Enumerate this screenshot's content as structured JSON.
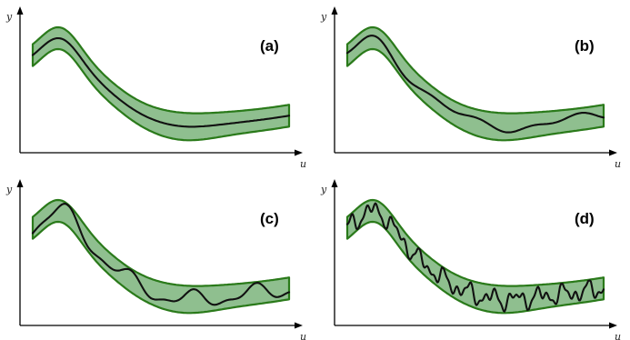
{
  "axes": {
    "y_label": "y",
    "x_label": "u"
  },
  "panels": [
    {
      "id": "a",
      "label": "(a)",
      "noise": "none"
    },
    {
      "id": "b",
      "label": "(b)",
      "noise": "low"
    },
    {
      "id": "c",
      "label": "(c)",
      "noise": "medium"
    },
    {
      "id": "d",
      "label": "(d)",
      "noise": "high"
    }
  ],
  "colors": {
    "band_fill": "#8fbf8f",
    "band_stroke": "#2a7a1a",
    "curve": "#111111",
    "axis": "#000000"
  }
}
